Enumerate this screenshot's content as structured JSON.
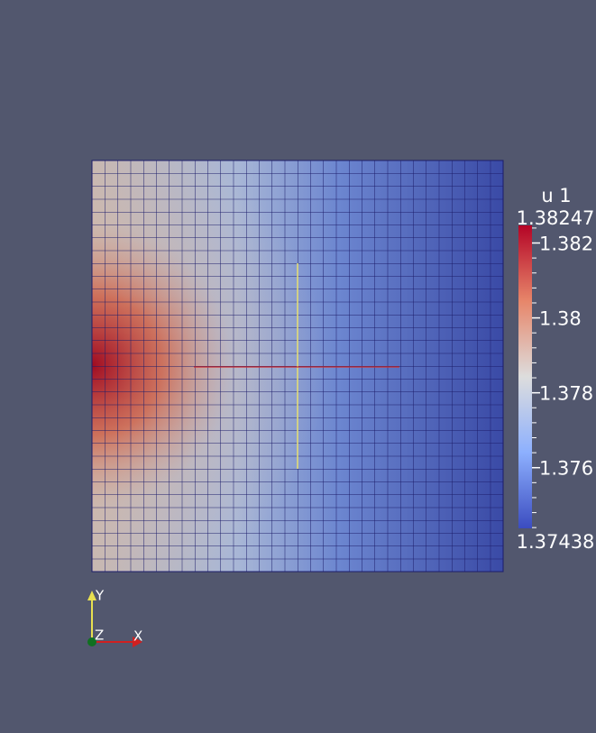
{
  "colorbar": {
    "title": "u 1",
    "min": 1.37438,
    "max": 1.38247,
    "ticks": [
      1.382,
      1.38,
      1.378,
      1.376
    ]
  },
  "axes": {
    "x": "X",
    "y": "Y",
    "z": "Z"
  }
}
